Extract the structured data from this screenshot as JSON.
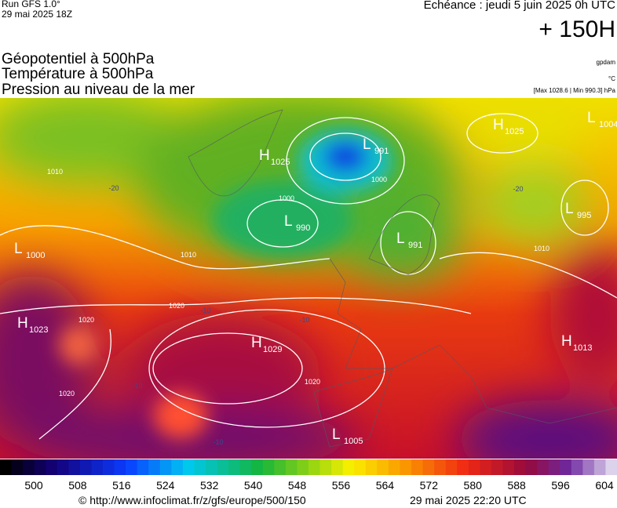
{
  "header": {
    "run": "Run GFS 1.0°",
    "run_date": "29 mai 2025 18Z",
    "valid": "Echéance : jeudi 5 juin 2025 0h UTC",
    "lead": "+ 150H",
    "layers": [
      "Géopotentiel à 500hPa",
      "Température à 500hPa",
      "Pression au niveau de la mer"
    ],
    "unit_geo": "gpdam",
    "unit_temp": "°C",
    "extremes": "[Max 1028.6 | Min 990.3] hPa"
  },
  "pressure_centers": [
    {
      "letter": "H",
      "value": "1025"
    },
    {
      "letter": "L",
      "value": "991"
    },
    {
      "letter": "L",
      "value": "990"
    },
    {
      "letter": "L",
      "value": "991"
    },
    {
      "letter": "H",
      "value": "1025"
    },
    {
      "letter": "L",
      "value": "1004"
    },
    {
      "letter": "L",
      "value": "995"
    },
    {
      "letter": "L",
      "value": "1000"
    },
    {
      "letter": "H",
      "value": "1023"
    },
    {
      "letter": "H",
      "value": "1029"
    },
    {
      "letter": "L",
      "value": "1005"
    },
    {
      "letter": "H",
      "value": "1013"
    }
  ],
  "contour_labels": [
    "1020",
    "1020",
    "1020",
    "1020",
    "1010",
    "1010",
    "1010",
    "1000",
    "1000",
    "-20",
    "-20",
    "-10",
    "-10",
    "-10",
    "-10"
  ],
  "colorbar": {
    "ticks": [
      "500",
      "508",
      "516",
      "524",
      "532",
      "540",
      "548",
      "556",
      "564",
      "572",
      "580",
      "588",
      "596",
      "604"
    ]
  },
  "footer": {
    "url": "© http://www.infoclimat.fr/z/gfs/europe/500/150",
    "timestamp": "29 mai 2025 22:20 UTC"
  }
}
